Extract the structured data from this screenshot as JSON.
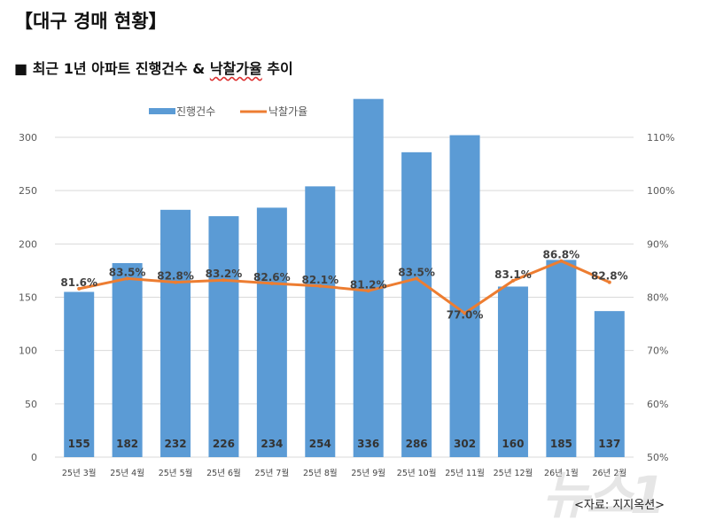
{
  "title": "【대구 경매 현황】",
  "subtitle_prefix": "■ 최근 1년 아파트 진행건수 & ",
  "subtitle_wavy": "낙찰가율",
  "subtitle_suffix": " 추이",
  "source": "<자료: 지지옥션>",
  "watermark": "뉴스1",
  "chart_data": {
    "type": "bar+line",
    "categories": [
      "25년 3월",
      "25년 4월",
      "25년 5월",
      "25년 6월",
      "25년 7월",
      "25년 8월",
      "25년 9월",
      "25년 10월",
      "25년 11월",
      "25년 12월",
      "26년 1월",
      "26년 2월"
    ],
    "series": [
      {
        "name": "진행건수",
        "type": "bar",
        "axis": "left",
        "color": "#5b9bd5",
        "values": [
          155,
          182,
          232,
          226,
          234,
          254,
          336,
          286,
          302,
          160,
          185,
          137
        ]
      },
      {
        "name": "낙찰가율",
        "type": "line",
        "axis": "right",
        "color": "#ed7d31",
        "values": [
          81.6,
          83.5,
          82.8,
          83.2,
          82.6,
          82.1,
          81.2,
          83.5,
          77.0,
          83.1,
          86.8,
          82.8
        ],
        "labels": [
          "81.6%",
          "83.5%",
          "82.8%",
          "83.2%",
          "82.6%",
          "82.1%",
          "81.2%",
          "83.5%",
          "77.0%",
          "83.1%",
          "86.8%",
          "82.8%"
        ]
      }
    ],
    "left_ylim": [
      0,
      300
    ],
    "left_ticks": [
      "0",
      "50",
      "100",
      "150",
      "200",
      "250",
      "300"
    ],
    "right_ylim": [
      50,
      110
    ],
    "right_ticks": [
      "50%",
      "60%",
      "70%",
      "80%",
      "90%",
      "100%",
      "110%"
    ],
    "grid": true,
    "legend": "top"
  }
}
